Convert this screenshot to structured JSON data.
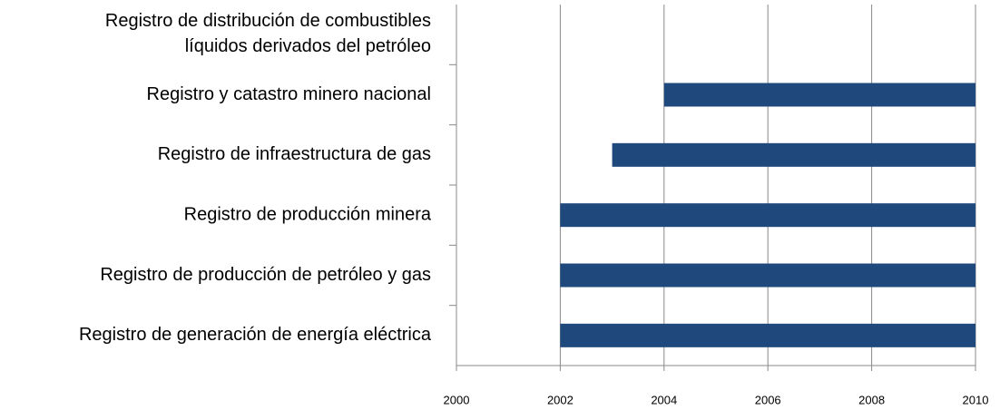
{
  "chart_data": {
    "type": "range_bar",
    "categories": [
      "Registro de distribución de combustibles\nlíquidos derivados del petróleo",
      "Registro y catastro minero nacional",
      "Registro de infraestructura de gas",
      "Registro de producción minera",
      "Registro de producción de petróleo y gas",
      "Registro de generación de energía eléctrica"
    ],
    "starts": [
      null,
      2004,
      2003,
      2002,
      2002,
      2002
    ],
    "ends": [
      null,
      2010,
      2010,
      2010,
      2010,
      2010
    ],
    "color": "#1f497d",
    "xlim": [
      2000,
      2010
    ],
    "xticks": [
      2000,
      2002,
      2004,
      2006,
      2008,
      2010
    ],
    "grid": true
  }
}
